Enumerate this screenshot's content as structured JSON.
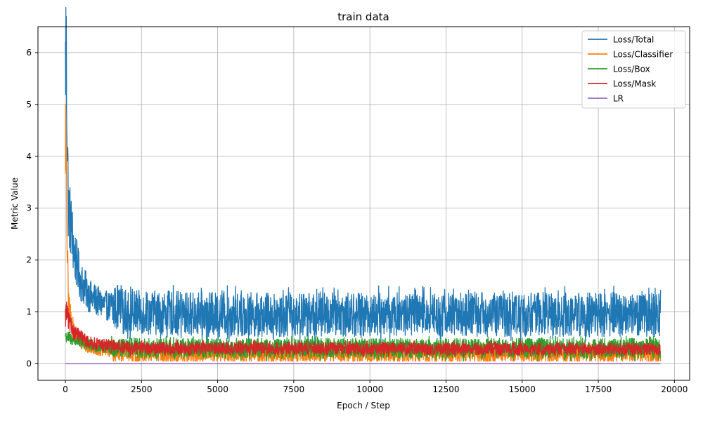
{
  "chart_data": {
    "type": "line",
    "title": "train data",
    "xlabel": "Epoch / Step",
    "ylabel": "Metric Value",
    "xlim": [
      -900,
      20500
    ],
    "ylim": [
      -0.32,
      6.5
    ],
    "x_ticks": [
      0,
      2500,
      5000,
      7500,
      10000,
      12500,
      15000,
      17500,
      20000
    ],
    "y_ticks": [
      0,
      1,
      2,
      3,
      4,
      5,
      6
    ],
    "grid": true,
    "legend_position": "top-right",
    "x_max_step": 19550,
    "series": [
      {
        "name": "Loss/Total",
        "color": "#1f77b4",
        "approx_points": [
          [
            0,
            5.6
          ],
          [
            10,
            6.2
          ],
          [
            30,
            5.9
          ],
          [
            60,
            4.6
          ],
          [
            100,
            3.0
          ],
          [
            200,
            2.6
          ],
          [
            300,
            2.1
          ],
          [
            500,
            1.6
          ],
          [
            800,
            1.3
          ],
          [
            1200,
            1.15
          ],
          [
            2000,
            1.0
          ],
          [
            5000,
            0.95
          ],
          [
            10000,
            0.95
          ],
          [
            15000,
            0.95
          ],
          [
            19550,
            0.95
          ]
        ],
        "band_low": 0.45,
        "band_high": 1.35
      },
      {
        "name": "Loss/Classifier",
        "color": "#ff7f0e",
        "approx_points": [
          [
            0,
            4.6
          ],
          [
            30,
            3.5
          ],
          [
            60,
            2.3
          ],
          [
            100,
            1.2
          ],
          [
            200,
            0.8
          ],
          [
            400,
            0.45
          ],
          [
            800,
            0.3
          ],
          [
            2000,
            0.2
          ],
          [
            19550,
            0.2
          ]
        ],
        "band_low": 0.07,
        "band_high": 0.45
      },
      {
        "name": "Loss/Box",
        "color": "#2ca02c",
        "approx_points": [
          [
            0,
            0.55
          ],
          [
            100,
            0.5
          ],
          [
            300,
            0.45
          ],
          [
            800,
            0.35
          ],
          [
            2000,
            0.3
          ],
          [
            19550,
            0.3
          ]
        ],
        "band_low": 0.07,
        "band_high": 0.47
      },
      {
        "name": "Loss/Mask",
        "color": "#d62728",
        "approx_points": [
          [
            0,
            0.9
          ],
          [
            50,
            1.05
          ],
          [
            100,
            0.8
          ],
          [
            300,
            0.6
          ],
          [
            800,
            0.4
          ],
          [
            2000,
            0.3
          ],
          [
            19550,
            0.28
          ]
        ],
        "band_low": 0.15,
        "band_high": 0.4
      },
      {
        "name": "LR",
        "color": "#9467bd",
        "approx_points": [
          [
            0,
            0.0
          ],
          [
            19550,
            0.0
          ]
        ],
        "band_low": 0.0,
        "band_high": 0.0
      }
    ]
  }
}
